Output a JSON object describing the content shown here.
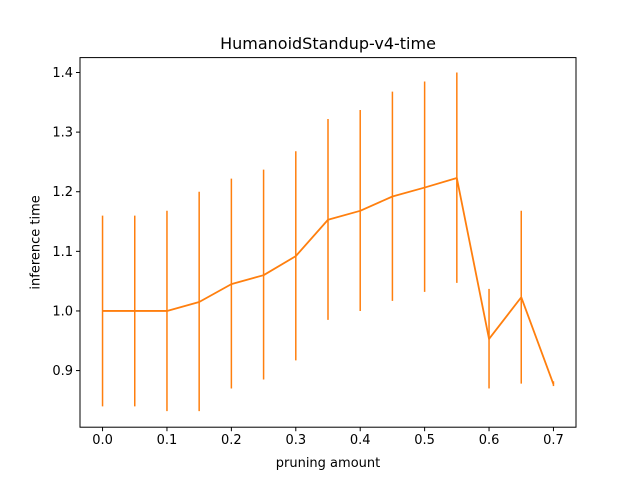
{
  "chart_data": {
    "type": "line",
    "title": "HumanoidStandup-v4-time",
    "xlabel": "pruning amount",
    "ylabel": "inference time",
    "xlim": [
      -0.035,
      0.735
    ],
    "ylim": [
      0.805,
      1.425
    ],
    "xticks": [
      0.0,
      0.1,
      0.2,
      0.3,
      0.4,
      0.5,
      0.6,
      0.7
    ],
    "xtick_labels": [
      "0.0",
      "0.1",
      "0.2",
      "0.3",
      "0.4",
      "0.5",
      "0.6",
      "0.7"
    ],
    "yticks": [
      0.9,
      1.0,
      1.1,
      1.2,
      1.3,
      1.4
    ],
    "ytick_labels": [
      "0.9",
      "1.0",
      "1.1",
      "1.2",
      "1.3",
      "1.4"
    ],
    "grid": false,
    "series": [
      {
        "color": "#ff7f0e",
        "x": [
          0.0,
          0.05,
          0.1,
          0.15,
          0.2,
          0.25,
          0.3,
          0.35,
          0.4,
          0.45,
          0.5,
          0.55,
          0.6,
          0.65,
          0.7
        ],
        "y": [
          1.0,
          1.0,
          1.0,
          1.015,
          1.045,
          1.06,
          1.092,
          1.153,
          1.168,
          1.192,
          1.207,
          1.223,
          0.953,
          1.023,
          0.877
        ],
        "err_low": [
          0.84,
          0.84,
          0.832,
          0.832,
          0.87,
          0.885,
          0.917,
          0.985,
          1.0,
          1.017,
          1.032,
          1.047,
          0.87,
          0.878,
          0.874
        ],
        "err_high": [
          1.16,
          1.16,
          1.168,
          1.2,
          1.222,
          1.237,
          1.268,
          1.322,
          1.337,
          1.368,
          1.385,
          1.4,
          1.037,
          1.168,
          0.882
        ]
      }
    ]
  }
}
